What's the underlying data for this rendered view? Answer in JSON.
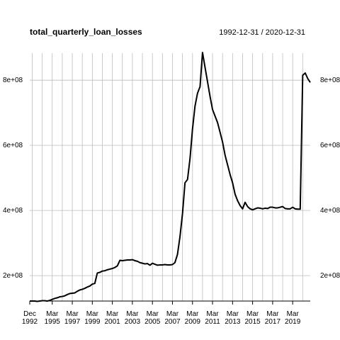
{
  "chart_data": {
    "type": "line",
    "title": "total_quarterly_loan_losses",
    "subtitle": "1992-12-31 / 2020-12-31",
    "x": [
      "1992-12-31",
      "1993-03-31",
      "1993-06-30",
      "1993-09-30",
      "1993-12-31",
      "1994-03-31",
      "1994-06-30",
      "1994-09-30",
      "1994-12-31",
      "1995-03-31",
      "1995-06-30",
      "1995-09-30",
      "1995-12-31",
      "1996-03-31",
      "1996-06-30",
      "1996-09-30",
      "1996-12-31",
      "1997-03-31",
      "1997-06-30",
      "1997-09-30",
      "1997-12-31",
      "1998-03-31",
      "1998-06-30",
      "1998-09-30",
      "1998-12-31",
      "1999-03-31",
      "1999-06-30",
      "1999-09-30",
      "1999-12-31",
      "2000-03-31",
      "2000-06-30",
      "2000-09-30",
      "2000-12-31",
      "2001-03-31",
      "2001-06-30",
      "2001-09-30",
      "2001-12-31",
      "2002-03-31",
      "2002-06-30",
      "2002-09-30",
      "2002-12-31",
      "2003-03-31",
      "2003-06-30",
      "2003-09-30",
      "2003-12-31",
      "2004-03-31",
      "2004-06-30",
      "2004-09-30",
      "2004-12-31",
      "2005-03-31",
      "2005-06-30",
      "2005-09-30",
      "2005-12-31",
      "2006-03-31",
      "2006-06-30",
      "2006-09-30",
      "2006-12-31",
      "2007-03-31",
      "2007-06-30",
      "2007-09-30",
      "2007-12-31",
      "2008-03-31",
      "2008-06-30",
      "2008-09-30",
      "2008-12-31",
      "2009-03-31",
      "2009-06-30",
      "2009-09-30",
      "2009-12-31",
      "2010-03-31",
      "2010-06-30",
      "2010-09-30",
      "2010-12-31",
      "2011-03-31",
      "2011-06-30",
      "2011-09-30",
      "2011-12-31",
      "2012-03-31",
      "2012-06-30",
      "2012-09-30",
      "2012-12-31",
      "2013-03-31",
      "2013-06-30",
      "2013-09-30",
      "2013-12-31",
      "2014-03-31",
      "2014-06-30",
      "2014-09-30",
      "2014-12-31",
      "2015-03-31",
      "2015-06-30",
      "2015-09-30",
      "2015-12-31",
      "2016-03-31",
      "2016-06-30",
      "2016-09-30",
      "2016-12-31",
      "2017-03-31",
      "2017-06-30",
      "2017-09-30",
      "2017-12-31",
      "2018-03-31",
      "2018-06-30",
      "2018-09-30",
      "2018-12-31",
      "2019-03-31",
      "2019-06-30",
      "2019-09-30",
      "2019-12-31",
      "2020-03-31",
      "2020-06-30",
      "2020-09-30",
      "2020-12-31"
    ],
    "values": [
      122000000,
      122000000,
      122000000,
      121000000,
      122000000,
      123000000,
      123000000,
      122000000,
      124000000,
      127000000,
      130000000,
      132000000,
      135000000,
      136000000,
      138000000,
      142000000,
      145000000,
      146000000,
      147000000,
      152000000,
      156000000,
      158000000,
      161000000,
      165000000,
      168000000,
      174000000,
      176000000,
      208000000,
      210000000,
      214000000,
      215000000,
      218000000,
      220000000,
      222000000,
      225000000,
      230000000,
      247000000,
      246000000,
      247000000,
      248000000,
      248000000,
      249000000,
      246000000,
      244000000,
      240000000,
      238000000,
      236000000,
      237000000,
      232000000,
      238000000,
      235000000,
      232000000,
      233000000,
      233000000,
      234000000,
      233000000,
      233000000,
      234000000,
      240000000,
      265000000,
      320000000,
      390000000,
      485000000,
      495000000,
      560000000,
      650000000,
      720000000,
      760000000,
      780000000,
      885000000,
      840000000,
      795000000,
      750000000,
      710000000,
      690000000,
      670000000,
      640000000,
      610000000,
      570000000,
      540000000,
      510000000,
      485000000,
      450000000,
      430000000,
      415000000,
      405000000,
      425000000,
      412000000,
      405000000,
      402000000,
      405000000,
      408000000,
      407000000,
      405000000,
      407000000,
      406000000,
      410000000,
      410000000,
      408000000,
      408000000,
      410000000,
      412000000,
      406000000,
      405000000,
      405000000,
      410000000,
      405000000,
      404000000,
      404000000,
      815000000,
      822000000,
      805000000,
      793000000
    ],
    "color": "#000000",
    "ylim": [
      122000000,
      883000000
    ],
    "yticks": [
      {
        "value": 200000000,
        "label": "2e+08"
      },
      {
        "value": 400000000,
        "label": "4e+08"
      },
      {
        "value": 600000000,
        "label": "6e+08"
      },
      {
        "value": 800000000,
        "label": "8e+08"
      }
    ],
    "xticks": [
      {
        "value": "1992-12-31",
        "label": "Dec 1992"
      },
      {
        "value": "1995-03-31",
        "label": "Mar 1995"
      },
      {
        "value": "1997-03-31",
        "label": "Mar 1997"
      },
      {
        "value": "1999-03-31",
        "label": "Mar 1999"
      },
      {
        "value": "2001-03-31",
        "label": "Mar 2001"
      },
      {
        "value": "2003-03-31",
        "label": "Mar 2003"
      },
      {
        "value": "2005-03-31",
        "label": "Mar 2005"
      },
      {
        "value": "2007-03-31",
        "label": "Mar 2007"
      },
      {
        "value": "2009-03-31",
        "label": "Mar 2009"
      },
      {
        "value": "2011-03-31",
        "label": "Mar 2011"
      },
      {
        "value": "2013-03-31",
        "label": "Mar 2013"
      },
      {
        "value": "2015-03-31",
        "label": "Mar 2015"
      },
      {
        "value": "2017-03-31",
        "label": "Mar 2017"
      },
      {
        "value": "2019-03-31",
        "label": "Mar 2019"
      }
    ],
    "grid": true
  }
}
